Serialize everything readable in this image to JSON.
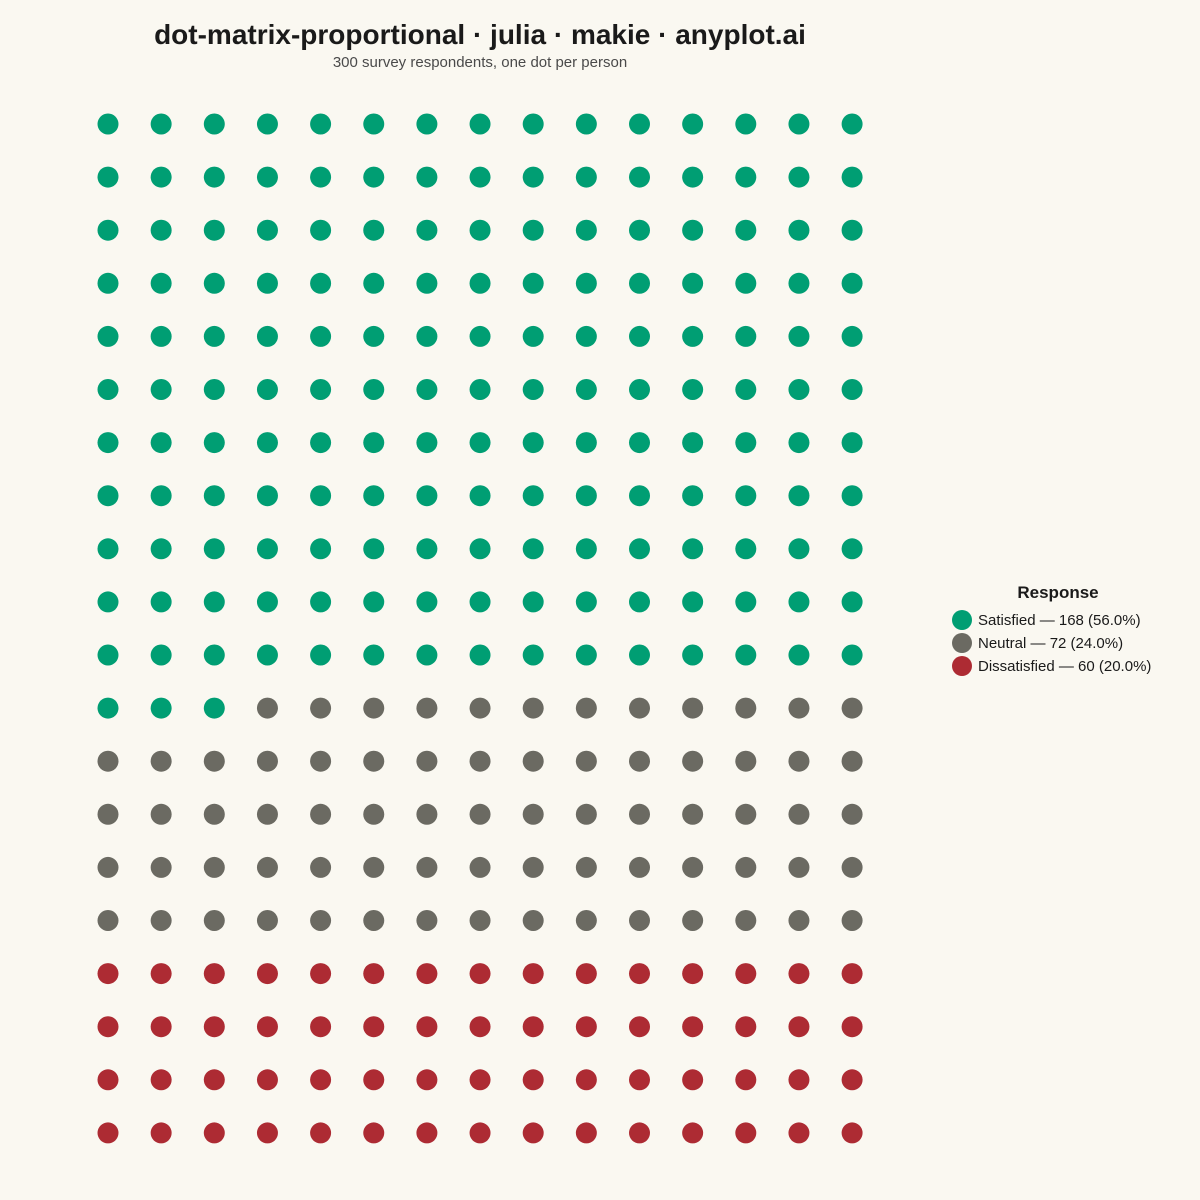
{
  "chart_data": {
    "type": "dot-matrix",
    "title": "dot-matrix-proportional · julia · makie · anyplot.ai",
    "subtitle": "300 survey respondents, one dot per person",
    "total": 300,
    "grid": {
      "rows": 20,
      "cols": 15
    },
    "legend": {
      "title": "Response",
      "position": "right"
    },
    "series": [
      {
        "name": "Satisfied",
        "count": 168,
        "percent": 56.0,
        "label": "Satisfied — 168 (56.0%)",
        "color": "#009E73"
      },
      {
        "name": "Neutral",
        "count": 72,
        "percent": 24.0,
        "label": "Neutral — 72 (24.0%)",
        "color": "#6B6A62"
      },
      {
        "name": "Dissatisfied",
        "count": 60,
        "percent": 20.0,
        "label": "Dissatisfied — 60 (20.0%)",
        "color": "#AD2B33"
      }
    ],
    "colors": {
      "background": "#FAF8F1",
      "text": "#1A1A1A",
      "subtitle_text": "#4A4A4A"
    }
  }
}
